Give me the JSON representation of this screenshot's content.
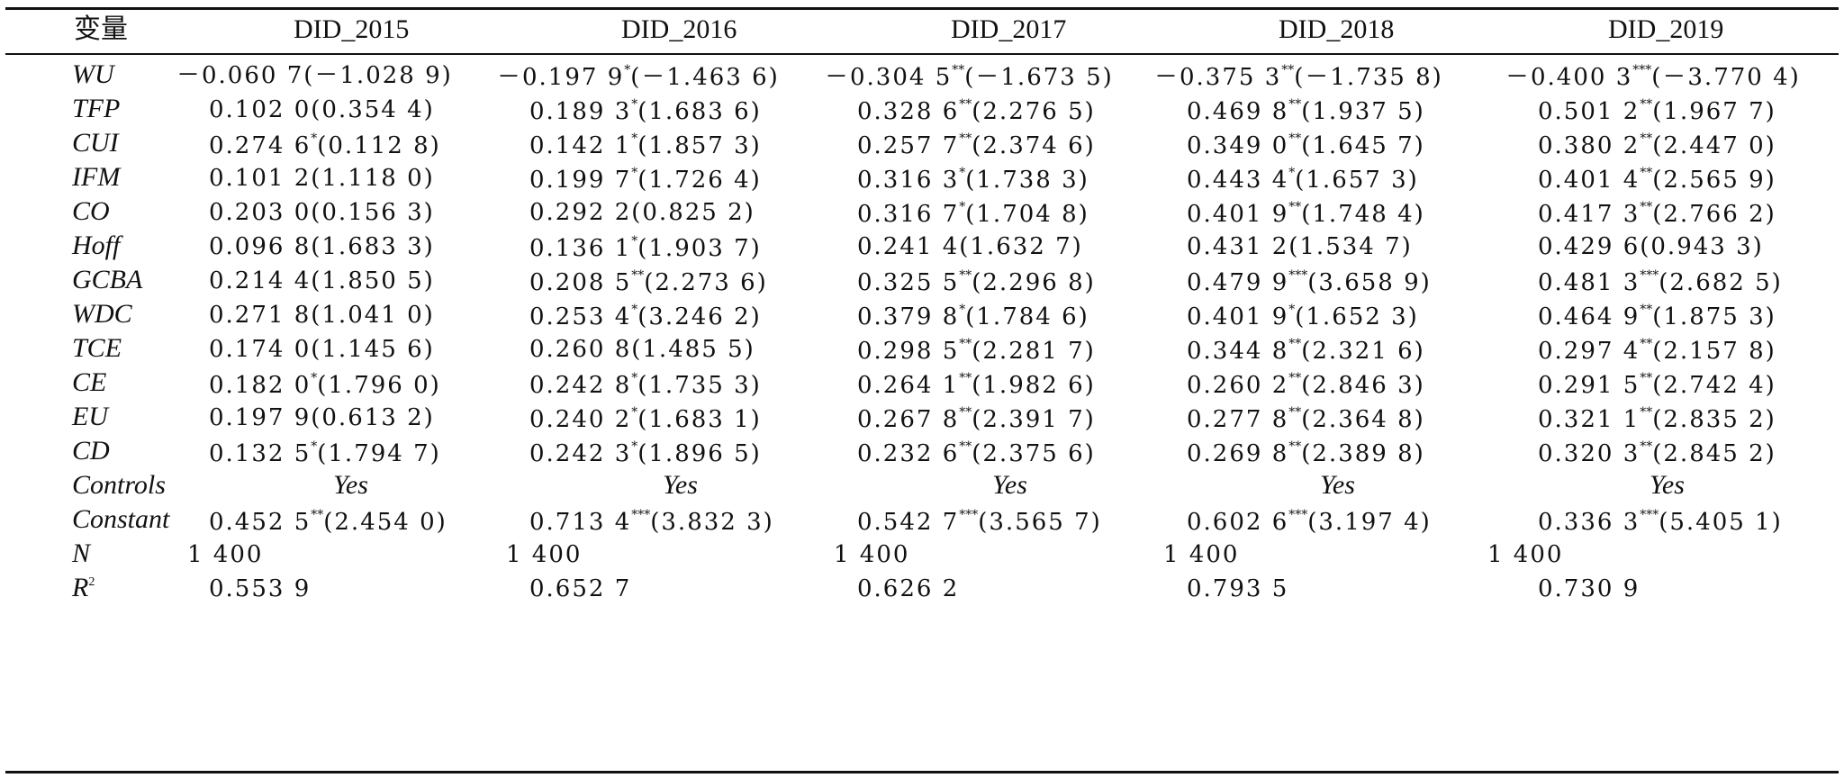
{
  "table": {
    "header": [
      "变量",
      "DID_2015",
      "DID_2016",
      "DID_2017",
      "DID_2018",
      "DID_2019"
    ],
    "rows": [
      {
        "var": "WU",
        "cells": [
          {
            "coef": "－0.060 7",
            "stars": "",
            "t": "(－1.028 9)"
          },
          {
            "coef": "－0.197 9",
            "stars": "*",
            "t": "(－1.463 6)"
          },
          {
            "coef": "－0.304 5",
            "stars": "**",
            "t": "(－1.673 5)"
          },
          {
            "coef": "－0.375 3",
            "stars": "**",
            "t": "(－1.735 8)"
          },
          {
            "coef": "－0.400 3",
            "stars": "***",
            "t": "(－3.770 4)"
          }
        ]
      },
      {
        "var": "TFP",
        "cells": [
          {
            "coef": "0.102 0",
            "stars": "",
            "t": "(0.354 4)"
          },
          {
            "coef": "0.189 3",
            "stars": "*",
            "t": "(1.683 6)"
          },
          {
            "coef": "0.328 6",
            "stars": "**",
            "t": "(2.276 5)"
          },
          {
            "coef": "0.469 8",
            "stars": "**",
            "t": "(1.937 5)"
          },
          {
            "coef": "0.501 2",
            "stars": "**",
            "t": "(1.967 7)"
          }
        ]
      },
      {
        "var": "CUI",
        "cells": [
          {
            "coef": "0.274 6",
            "stars": "*",
            "t": "(0.112 8)"
          },
          {
            "coef": "0.142 1",
            "stars": "*",
            "t": "(1.857 3)"
          },
          {
            "coef": "0.257 7",
            "stars": "**",
            "t": "(2.374 6)"
          },
          {
            "coef": "0.349 0",
            "stars": "**",
            "t": "(1.645 7)"
          },
          {
            "coef": "0.380 2",
            "stars": "**",
            "t": "(2.447 0)"
          }
        ]
      },
      {
        "var": "IFM",
        "cells": [
          {
            "coef": "0.101 2",
            "stars": "",
            "t": "(1.118 0)"
          },
          {
            "coef": "0.199 7",
            "stars": "*",
            "t": "(1.726 4)"
          },
          {
            "coef": "0.316 3",
            "stars": "*",
            "t": "(1.738 3)"
          },
          {
            "coef": "0.443 4",
            "stars": "*",
            "t": "(1.657 3)"
          },
          {
            "coef": "0.401 4",
            "stars": "**",
            "t": "(2.565 9)"
          }
        ]
      },
      {
        "var": "CO",
        "cells": [
          {
            "coef": "0.203 0",
            "stars": "",
            "t": "(0.156 3)"
          },
          {
            "coef": "0.292 2",
            "stars": "",
            "t": "(0.825 2)"
          },
          {
            "coef": "0.316 7",
            "stars": "*",
            "t": "(1.704 8)"
          },
          {
            "coef": "0.401 9",
            "stars": "**",
            "t": "(1.748 4)"
          },
          {
            "coef": "0.417 3",
            "stars": "**",
            "t": "(2.766 2)"
          }
        ]
      },
      {
        "var": "Hoff",
        "cells": [
          {
            "coef": "0.096 8",
            "stars": "",
            "t": "(1.683 3)"
          },
          {
            "coef": "0.136 1",
            "stars": "*",
            "t": "(1.903 7)"
          },
          {
            "coef": "0.241 4",
            "stars": "",
            "t": "(1.632 7)"
          },
          {
            "coef": "0.431 2",
            "stars": "",
            "t": "(1.534 7)"
          },
          {
            "coef": "0.429 6",
            "stars": "",
            "t": "(0.943 3)"
          }
        ]
      },
      {
        "var": "GCBA",
        "cells": [
          {
            "coef": "0.214 4",
            "stars": "",
            "t": "(1.850 5)"
          },
          {
            "coef": "0.208 5",
            "stars": "**",
            "t": "(2.273 6)"
          },
          {
            "coef": "0.325 5",
            "stars": "**",
            "t": "(2.296 8)"
          },
          {
            "coef": "0.479 9",
            "stars": "***",
            "t": "(3.658 9)"
          },
          {
            "coef": "0.481 3",
            "stars": "***",
            "t": "(2.682 5)"
          }
        ]
      },
      {
        "var": "WDC",
        "cells": [
          {
            "coef": "0.271 8",
            "stars": "",
            "t": "(1.041 0)"
          },
          {
            "coef": "0.253 4",
            "stars": "*",
            "t": "(3.246 2)"
          },
          {
            "coef": "0.379 8",
            "stars": "*",
            "t": "(1.784 6)"
          },
          {
            "coef": "0.401 9",
            "stars": "*",
            "t": "(1.652 3)"
          },
          {
            "coef": "0.464 9",
            "stars": "**",
            "t": "(1.875 3)"
          }
        ]
      },
      {
        "var": "TCE",
        "cells": [
          {
            "coef": "0.174 0",
            "stars": "",
            "t": "(1.145 6)"
          },
          {
            "coef": "0.260 8",
            "stars": "",
            "t": "(1.485 5)"
          },
          {
            "coef": "0.298 5",
            "stars": "**",
            "t": "(2.281 7)"
          },
          {
            "coef": "0.344 8",
            "stars": "**",
            "t": "(2.321 6)"
          },
          {
            "coef": "0.297 4",
            "stars": "**",
            "t": "(2.157 8)"
          }
        ]
      },
      {
        "var": "CE",
        "cells": [
          {
            "coef": "0.182 0",
            "stars": "*",
            "t": "(1.796 0)"
          },
          {
            "coef": "0.242 8",
            "stars": "*",
            "t": "(1.735 3)"
          },
          {
            "coef": "0.264 1",
            "stars": "**",
            "t": "(1.982 6)"
          },
          {
            "coef": "0.260 2",
            "stars": "**",
            "t": "(2.846 3)"
          },
          {
            "coef": "0.291 5",
            "stars": "**",
            "t": "(2.742 4)"
          }
        ]
      },
      {
        "var": "EU",
        "cells": [
          {
            "coef": "0.197 9",
            "stars": "",
            "t": "(0.613 2)"
          },
          {
            "coef": "0.240 2",
            "stars": "*",
            "t": "(1.683 1)"
          },
          {
            "coef": "0.267 8",
            "stars": "**",
            "t": "(2.391 7)"
          },
          {
            "coef": "0.277 8",
            "stars": "**",
            "t": "(2.364 8)"
          },
          {
            "coef": "0.321 1",
            "stars": "**",
            "t": "(2.835 2)"
          }
        ]
      },
      {
        "var": "CD",
        "cells": [
          {
            "coef": "0.132 5",
            "stars": "*",
            "t": "(1.794 7)"
          },
          {
            "coef": "0.242 3",
            "stars": "*",
            "t": "(1.896 5)"
          },
          {
            "coef": "0.232 6",
            "stars": "**",
            "t": "(2.375 6)"
          },
          {
            "coef": "0.269 8",
            "stars": "**",
            "t": "(2.389 8)"
          },
          {
            "coef": "0.320 3",
            "stars": "**",
            "t": "(2.845 2)"
          }
        ]
      },
      {
        "var": "Controls",
        "yes": [
          "Yes",
          "Yes",
          "Yes",
          "Yes",
          "Yes"
        ]
      },
      {
        "var": "Constant",
        "cells": [
          {
            "coef": "0.452 5",
            "stars": "**",
            "t": "(2.454 0)"
          },
          {
            "coef": "0.713 4",
            "stars": "***",
            "t": "(3.832 3)"
          },
          {
            "coef": "0.542 7",
            "stars": "***",
            "t": "(3.565 7)"
          },
          {
            "coef": "0.602 6",
            "stars": "***",
            "t": "(3.197 4)"
          },
          {
            "coef": "0.336 3",
            "stars": "***",
            "t": "(5.405 1)"
          }
        ]
      },
      {
        "var": "N",
        "plain": [
          "1 400",
          "1 400",
          "1 400",
          "1 400",
          "1 400"
        ]
      },
      {
        "var": "R",
        "var_sup": "2",
        "plain": [
          "0.553 9",
          "0.652 7",
          "0.626 2",
          "0.793 5",
          "0.730 9"
        ]
      }
    ]
  }
}
